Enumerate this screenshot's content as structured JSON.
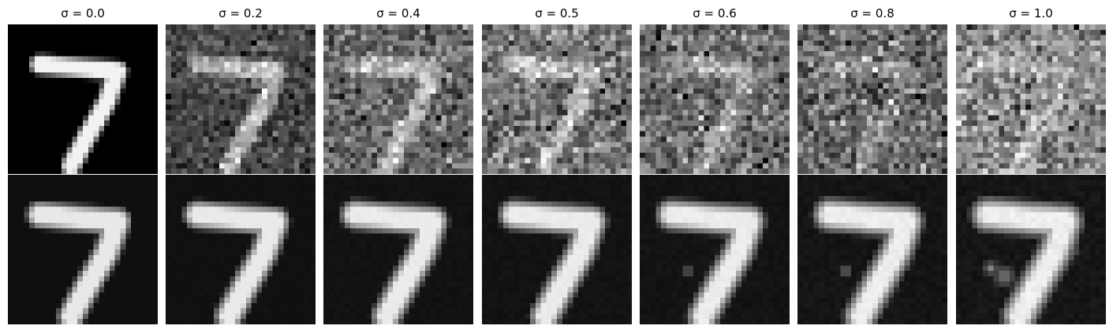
{
  "figure": {
    "columns": [
      {
        "title": "σ = 0.0",
        "noise": 0.0
      },
      {
        "title": "σ = 0.2",
        "noise": 0.2
      },
      {
        "title": "σ = 0.4",
        "noise": 0.4
      },
      {
        "title": "σ = 0.5",
        "noise": 0.5
      },
      {
        "title": "σ = 0.6",
        "noise": 0.6
      },
      {
        "title": "σ = 0.8",
        "noise": 0.8
      },
      {
        "title": "σ = 1.0",
        "noise": 1.0
      }
    ],
    "rows": [
      "noisy input",
      "denoised output"
    ],
    "digit": "7"
  }
}
